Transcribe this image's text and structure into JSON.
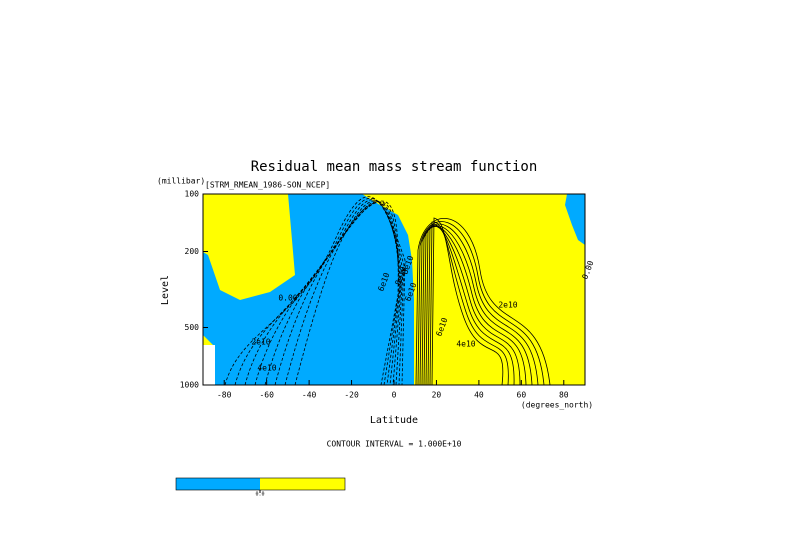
{
  "chart_data": {
    "type": "contour",
    "title": "Residual mean mass stream function",
    "subtitle": "[STRM_RMEAN_1986-SON_NCEP]",
    "y_units": "(millibar)",
    "y_label": "Level",
    "x_label": "Latitude",
    "x_units": "(degrees_north)",
    "note": "CONTOUR INTERVAL = 1.000E+10",
    "xlim": [
      -90,
      90
    ],
    "xticks": [
      -80,
      -60,
      -40,
      -20,
      0,
      20,
      40,
      60,
      80
    ],
    "ylim": [
      1000,
      100
    ],
    "yticks": [
      100,
      200,
      500,
      1000
    ],
    "ylog": true,
    "colors": [
      "#00aaff",
      "#ffff00"
    ],
    "colorbar_levels": [
      {
        "value": 0,
        "label": "0.0"
      }
    ],
    "contour_labels": [
      "0.00",
      "2e10",
      "4e10",
      "6e10",
      "8e10",
      "8e10",
      "6e10",
      "2e10",
      "6e10",
      "4e10",
      "0.00"
    ]
  }
}
